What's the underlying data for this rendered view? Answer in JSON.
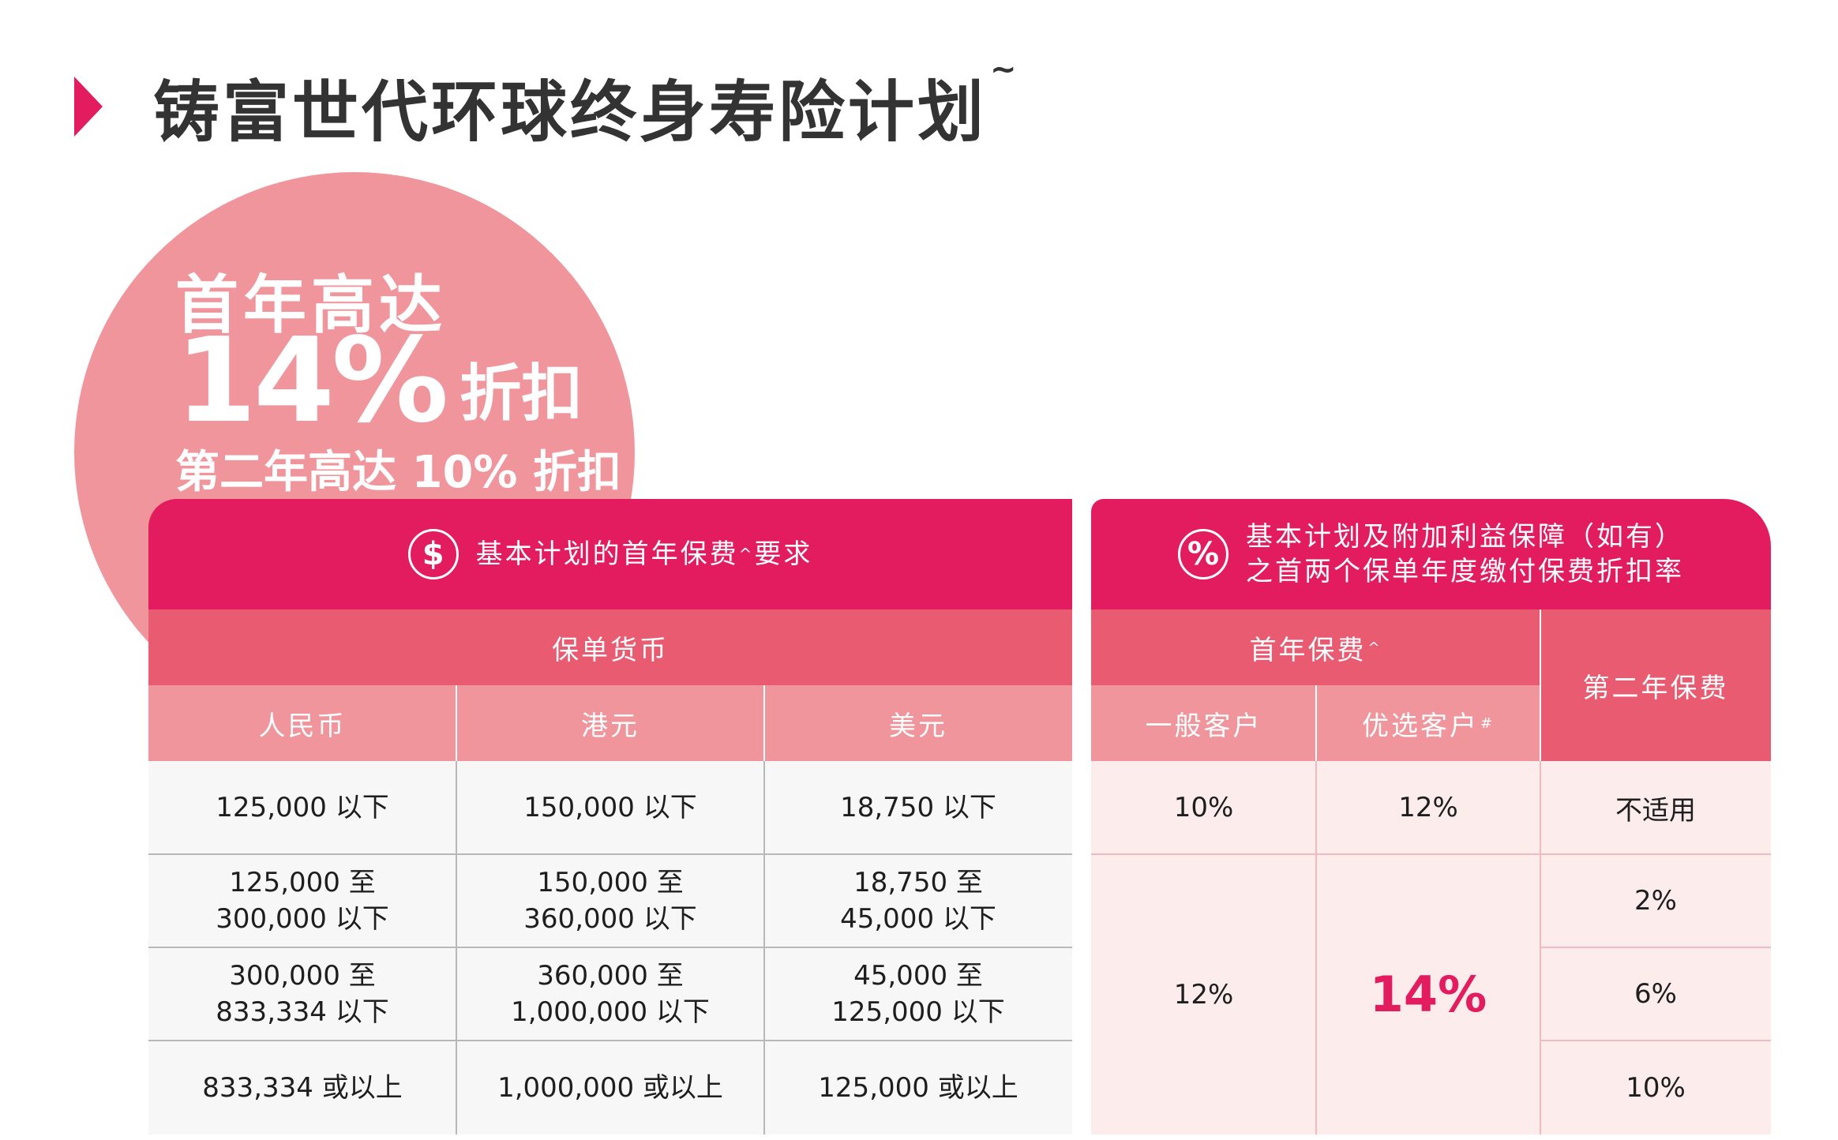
{
  "title": {
    "text": "铸富世代环球终身寿险计划",
    "mark": "~"
  },
  "promo": {
    "line1": "首年高达",
    "line2_big": "14%",
    "line2_small": "折扣",
    "line3": "第二年高达 10% 折扣"
  },
  "left_table": {
    "header_icon": "dollar-icon",
    "header_text": "基本计划的首年保费",
    "header_mark": "^",
    "header_suffix": "要求",
    "currency_header": "保单货币",
    "columns": [
      "人民币",
      "港元",
      "美元"
    ],
    "rows": [
      [
        "125,000 以下",
        "150,000 以下",
        "18,750 以下"
      ],
      [
        "125,000 至\n300,000 以下",
        "150,000 至\n360,000 以下",
        "18,750 至\n45,000 以下"
      ],
      [
        "300,000 至\n833,334 以下",
        "360,000 至\n1,000,000 以下",
        "45,000 至\n125,000 以下"
      ],
      [
        "833,334 或以上",
        "1,000,000 或以上",
        "125,000 或以上"
      ]
    ]
  },
  "right_table": {
    "header_icon": "percent-icon",
    "header_line1": "基本计划及附加利益保障（如有）",
    "header_line2": "之首两个保单年度缴付保费折扣率",
    "first_year_header": "首年保费",
    "first_year_mark": "^",
    "second_year_header": "第二年保费",
    "general_client": "一般客户",
    "preferred_client": "优选客户",
    "preferred_mark": "#",
    "general_rates": [
      "10%",
      "12%"
    ],
    "preferred_rates": [
      "12%",
      "14%"
    ],
    "second_year_rates": [
      "不适用",
      "2%",
      "6%",
      "10%"
    ]
  },
  "colors": {
    "brand": "#e31c5f",
    "sub_header": "#e85b70",
    "col_header": "#f1959c",
    "circle": "#f1959c",
    "body_left": "#f7f7f7",
    "body_right": "#fdecec"
  }
}
